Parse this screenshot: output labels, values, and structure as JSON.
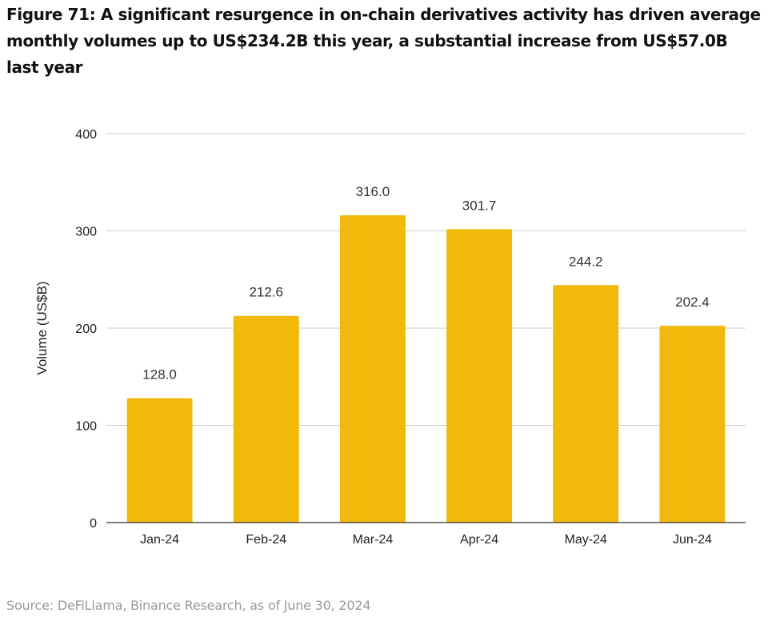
{
  "figure": {
    "title": "Figure 71: A significant resurgence in on-chain derivatives activity has driven average monthly volumes up to US$234.2B this year, a substantial increase from US$57.0B last year",
    "source": "Source: DeFiLlama, Binance Research, as of June 30, 2024"
  },
  "colors": {
    "bar": "#F0B90B"
  },
  "chart_data": {
    "type": "bar",
    "title": "",
    "xlabel": "",
    "ylabel": "Volume (US$B)",
    "categories": [
      "Jan-24",
      "Feb-24",
      "Mar-24",
      "Apr-24",
      "May-24",
      "Jun-24"
    ],
    "values": [
      128.0,
      212.6,
      316.0,
      301.7,
      244.2,
      202.4
    ],
    "value_labels": [
      "128.0",
      "212.6",
      "316.0",
      "301.7",
      "244.2",
      "202.4"
    ],
    "ylim": [
      0,
      400
    ],
    "yticks": [
      0,
      100,
      200,
      300,
      400
    ],
    "ytick_labels": [
      "0",
      "100",
      "200",
      "300",
      "400"
    ],
    "grid": true,
    "legend": "none"
  }
}
